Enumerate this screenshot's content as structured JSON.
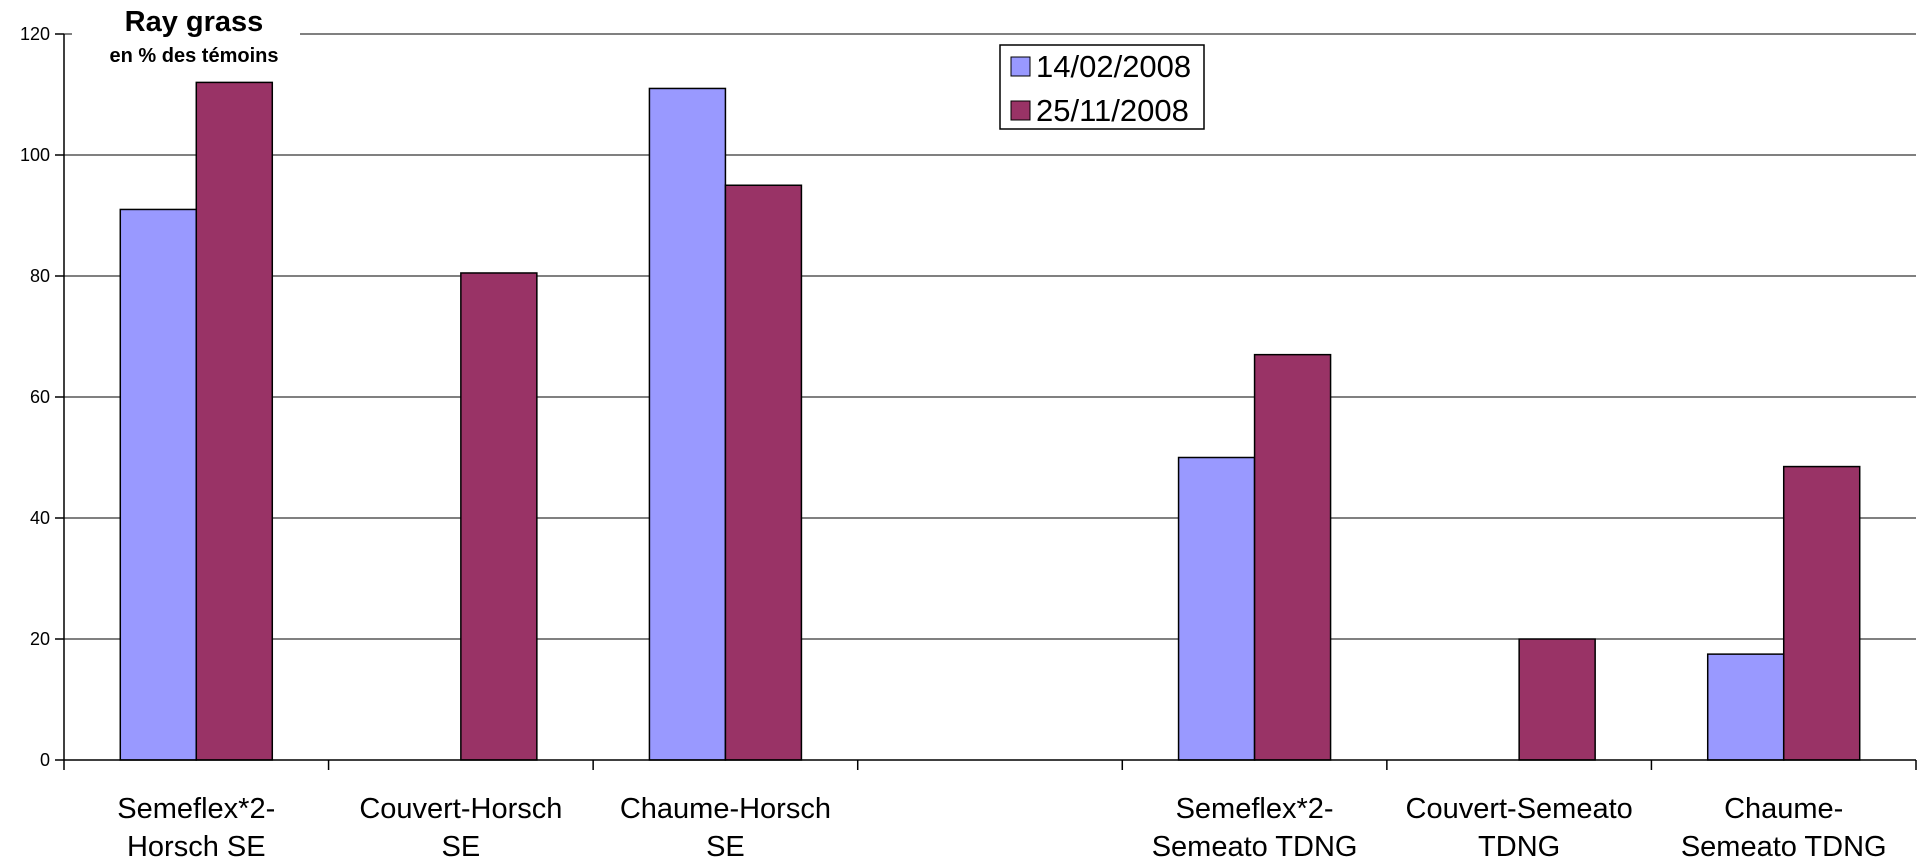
{
  "chart_data": {
    "type": "bar",
    "title": "Ray grass",
    "subtitle": "en % des témoins",
    "xlabel": "",
    "ylabel": "",
    "ylim": [
      0,
      120
    ],
    "yticks": [
      "0",
      "20",
      "40",
      "60",
      "80",
      "100",
      "120"
    ],
    "categories": [
      [
        "Semeflex*2-",
        "Horsch SE"
      ],
      [
        "Couvert-Horsch",
        "SE"
      ],
      [
        "Chaume-Horsch",
        "SE"
      ],
      [
        "",
        ""
      ],
      [
        "Semeflex*2-",
        "Semeato TDNG"
      ],
      [
        "Couvert-Semeato",
        "TDNG"
      ],
      [
        "Chaume-",
        "Semeato TDNG"
      ]
    ],
    "series": [
      {
        "name": "14/02/2008",
        "color": "#9999ff",
        "values": [
          91,
          null,
          111,
          null,
          50,
          null,
          17.5
        ]
      },
      {
        "name": "25/11/2008",
        "color": "#993366",
        "values": [
          112,
          80.5,
          95,
          null,
          67,
          20,
          48.5
        ]
      }
    ],
    "grid": true,
    "legend_position": "top-center"
  }
}
